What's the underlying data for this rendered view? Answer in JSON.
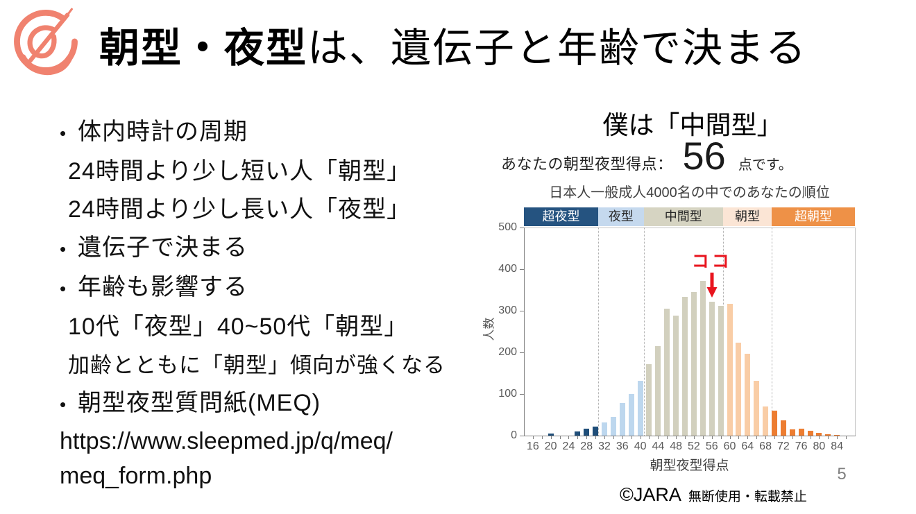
{
  "slide": {
    "title_bold": "朝型・夜型",
    "title_rest": "は、遺伝子と年齢で決まる",
    "bullet_glyph": "•",
    "logo_color": "#F0826F",
    "page_number": "5"
  },
  "left_column": {
    "lines": [
      {
        "text": "体内時計の周期",
        "bullet": true
      },
      {
        "text": "24時間より少し短い人「朝型」",
        "bullet": false
      },
      {
        "text": "24時間より少し長い人「夜型」",
        "bullet": false
      },
      {
        "text": "遺伝子で決まる",
        "bullet": true
      },
      {
        "text": "年齢も影響する",
        "bullet": true
      },
      {
        "text": "10代「夜型」40~50代「朝型」",
        "bullet": false
      },
      {
        "text": "加齢とともに「朝型」傾向が強くなる",
        "bullet": false,
        "small": true
      },
      {
        "text": "朝型夜型質問紙(MEQ)",
        "bullet": true
      },
      {
        "text": "https://www.sleepmed.jp/q/meq/",
        "bullet": false,
        "url": true
      },
      {
        "text": "meq_form.php",
        "bullet": false,
        "url": true
      }
    ]
  },
  "right_column": {
    "heading": "僕は「中間型」",
    "score_prefix": "あなたの朝型夜型得点：",
    "score_value": "56",
    "score_suffix": "点です。",
    "copyright_mark": "©JARA",
    "copyright_note": "無断使用・転載禁止"
  },
  "chart_data": {
    "type": "bar",
    "title": "日本人一般成人4000名の中でのあなたの順位",
    "xlabel": "朝型夜型得点",
    "ylabel": "人数",
    "ylim": [
      0,
      500
    ],
    "yticks": [
      0,
      100,
      200,
      300,
      400,
      500
    ],
    "x_range": [
      14,
      88
    ],
    "xticks": [
      16,
      20,
      24,
      28,
      32,
      36,
      40,
      44,
      48,
      52,
      56,
      60,
      64,
      68,
      72,
      76,
      80,
      84
    ],
    "x": [
      16,
      18,
      20,
      22,
      24,
      26,
      28,
      30,
      32,
      34,
      36,
      38,
      40,
      42,
      44,
      46,
      48,
      50,
      52,
      54,
      56,
      58,
      60,
      62,
      64,
      66,
      68,
      70,
      72,
      74,
      76,
      78,
      80,
      82,
      84
    ],
    "values": [
      0,
      0,
      5,
      0,
      0,
      10,
      16,
      21,
      32,
      45,
      79,
      100,
      132,
      172,
      215,
      305,
      288,
      333,
      345,
      371,
      322,
      312,
      317,
      224,
      197,
      131,
      70,
      60,
      36,
      15,
      17,
      11,
      6,
      3,
      1
    ],
    "grid": "vertical-band-separators-only",
    "bands": [
      {
        "label": "超夜型",
        "from": 14,
        "to": 30.6,
        "band_color": "#255380",
        "bar_color": "#1F4E79",
        "text_color": "#FFFFFF"
      },
      {
        "label": "夜型",
        "from": 30.6,
        "to": 40.8,
        "band_color": "#C5D9EE",
        "bar_color": "#BDD7EE",
        "text_color": "#262626"
      },
      {
        "label": "中間型",
        "from": 40.8,
        "to": 58.5,
        "band_color": "#D6D4C2",
        "bar_color": "#D2D0BE",
        "text_color": "#262626"
      },
      {
        "label": "朝型",
        "from": 58.5,
        "to": 69.4,
        "band_color": "#FBE5D5",
        "bar_color": "#F9CDA6",
        "text_color": "#262626"
      },
      {
        "label": "超朝型",
        "from": 69.4,
        "to": 88,
        "band_color": "#EE9147",
        "bar_color": "#ED7D31",
        "text_color": "#FFFFFF"
      }
    ],
    "annotation": {
      "label": "ココ",
      "score": 56,
      "color": "#E8141E"
    },
    "axis_color": "#7F7F7F",
    "box_color": "#C6C6C6",
    "tick_text_color": "#595959"
  }
}
